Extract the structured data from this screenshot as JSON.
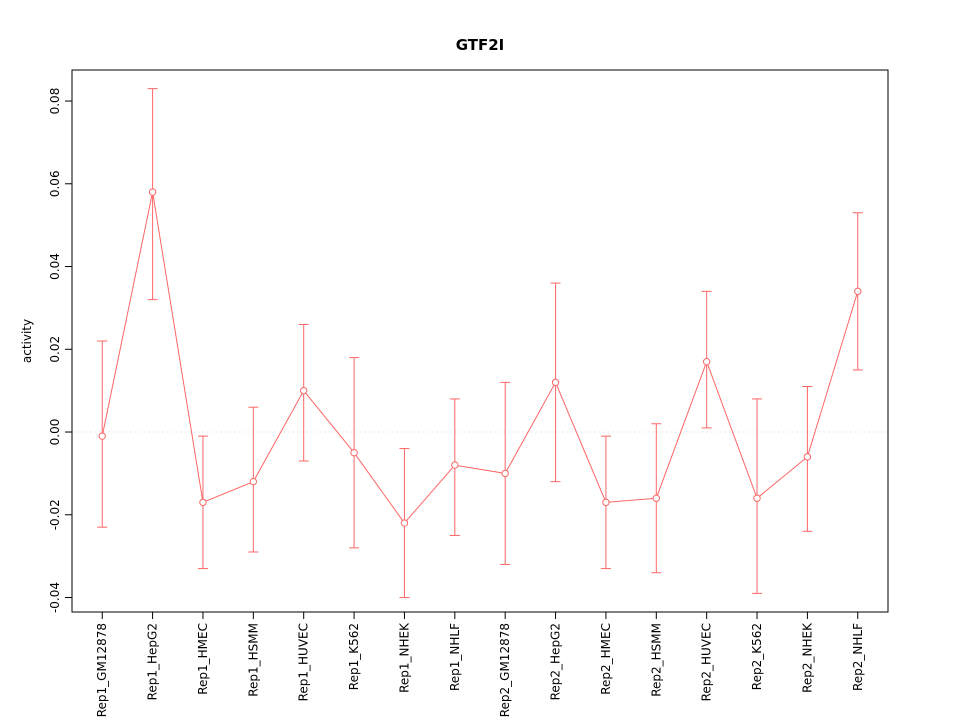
{
  "chart_data": {
    "type": "line",
    "title": "GTF2I",
    "xlabel": "",
    "ylabel": "activity",
    "categories": [
      "Rep1_GM12878",
      "Rep1_HepG2",
      "Rep1_HMEC",
      "Rep1_HSMM",
      "Rep1_HUVEC",
      "Rep1_K562",
      "Rep1_NHEK",
      "Rep1_NHLF",
      "Rep2_GM12878",
      "Rep2_HepG2",
      "Rep2_HMEC",
      "Rep2_HSMM",
      "Rep2_HUVEC",
      "Rep2_K562",
      "Rep2_NHEK",
      "Rep2_NHLF"
    ],
    "series": [
      {
        "name": "activity",
        "values": [
          -0.001,
          0.058,
          -0.017,
          -0.012,
          0.01,
          -0.005,
          -0.022,
          -0.008,
          -0.01,
          0.012,
          -0.017,
          -0.016,
          0.017,
          -0.016,
          -0.006,
          0.034
        ],
        "err_low": [
          -0.023,
          0.032,
          -0.033,
          -0.029,
          -0.007,
          -0.028,
          -0.04,
          -0.025,
          -0.032,
          -0.012,
          -0.033,
          -0.034,
          0.001,
          -0.039,
          -0.024,
          0.015
        ],
        "err_high": [
          0.022,
          0.083,
          -0.001,
          0.006,
          0.026,
          0.018,
          -0.004,
          0.008,
          0.012,
          0.036,
          -0.001,
          0.002,
          0.034,
          0.008,
          0.011,
          0.053
        ]
      }
    ],
    "ylim": [
      -0.0435,
      0.0875
    ],
    "yticks": [
      -0.04,
      -0.02,
      0.0,
      0.02,
      0.04,
      0.06,
      0.08
    ],
    "grid": "off",
    "zero_line": true,
    "legend_position": "none",
    "colors": {
      "series": "#ff6666",
      "point_fill": "#ffffff",
      "zero_line": "#e2e2e2",
      "axis": "#000000"
    }
  }
}
